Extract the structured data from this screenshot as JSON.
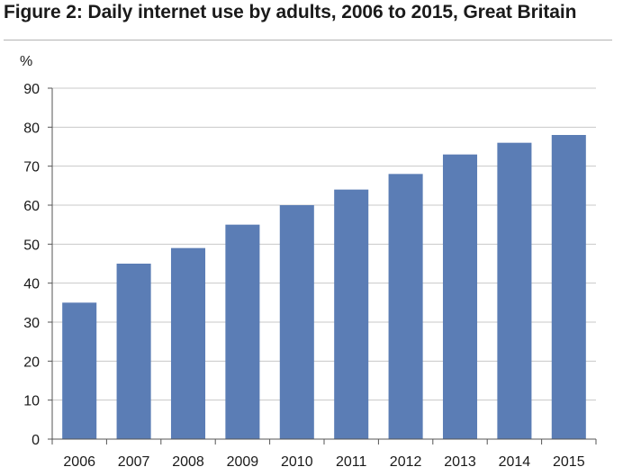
{
  "figure": {
    "title": "Figure 2: Daily internet use by adults, 2006 to 2015, Great Britain"
  },
  "chart_data": {
    "type": "bar",
    "title": "Figure 2: Daily internet use by adults, 2006 to 2015, Great Britain",
    "categories": [
      "2006",
      "2007",
      "2008",
      "2009",
      "2010",
      "2011",
      "2012",
      "2013",
      "2014",
      "2015"
    ],
    "values": [
      35,
      45,
      49,
      55,
      60,
      64,
      68,
      73,
      76,
      78
    ],
    "xlabel": "",
    "ylabel": "%",
    "ylim": [
      0,
      90
    ],
    "yticks": [
      "0",
      "10",
      "20",
      "30",
      "40",
      "50",
      "60",
      "70",
      "80",
      "90"
    ],
    "grid": true,
    "legend": "none",
    "colors": {
      "bar": "#5b7db5",
      "grid": "#c8c8c8",
      "axis": "#555555"
    }
  }
}
